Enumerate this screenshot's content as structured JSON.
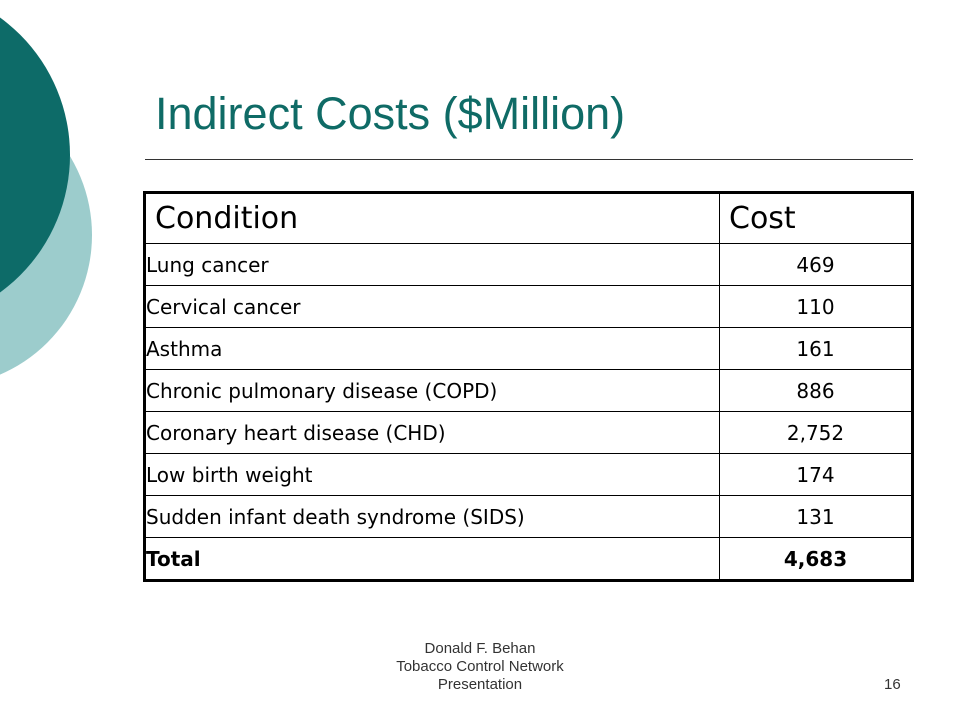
{
  "slide": {
    "title": "Indirect Costs ($Million)",
    "footer_lines": [
      "Donald F. Behan",
      "Tobacco Control Network",
      "Presentation"
    ],
    "page_number": "16"
  },
  "colors": {
    "title": "#0f6b66",
    "decor_dark": "#0d6b68",
    "decor_light": "#9ccccc"
  },
  "table": {
    "headers": [
      "Condition",
      "Cost"
    ],
    "rows": [
      {
        "condition": "Lung cancer",
        "cost": "469"
      },
      {
        "condition": "Cervical cancer",
        "cost": "110"
      },
      {
        "condition": "Asthma",
        "cost": "161"
      },
      {
        "condition": "Chronic pulmonary disease (COPD)",
        "cost": "886"
      },
      {
        "condition": "Coronary heart disease (CHD)",
        "cost": "2,752"
      },
      {
        "condition": "Low birth weight",
        "cost": "174"
      },
      {
        "condition": "Sudden infant death syndrome (SIDS)",
        "cost": "131"
      }
    ],
    "total": {
      "condition": "Total",
      "cost": "4,683"
    }
  }
}
